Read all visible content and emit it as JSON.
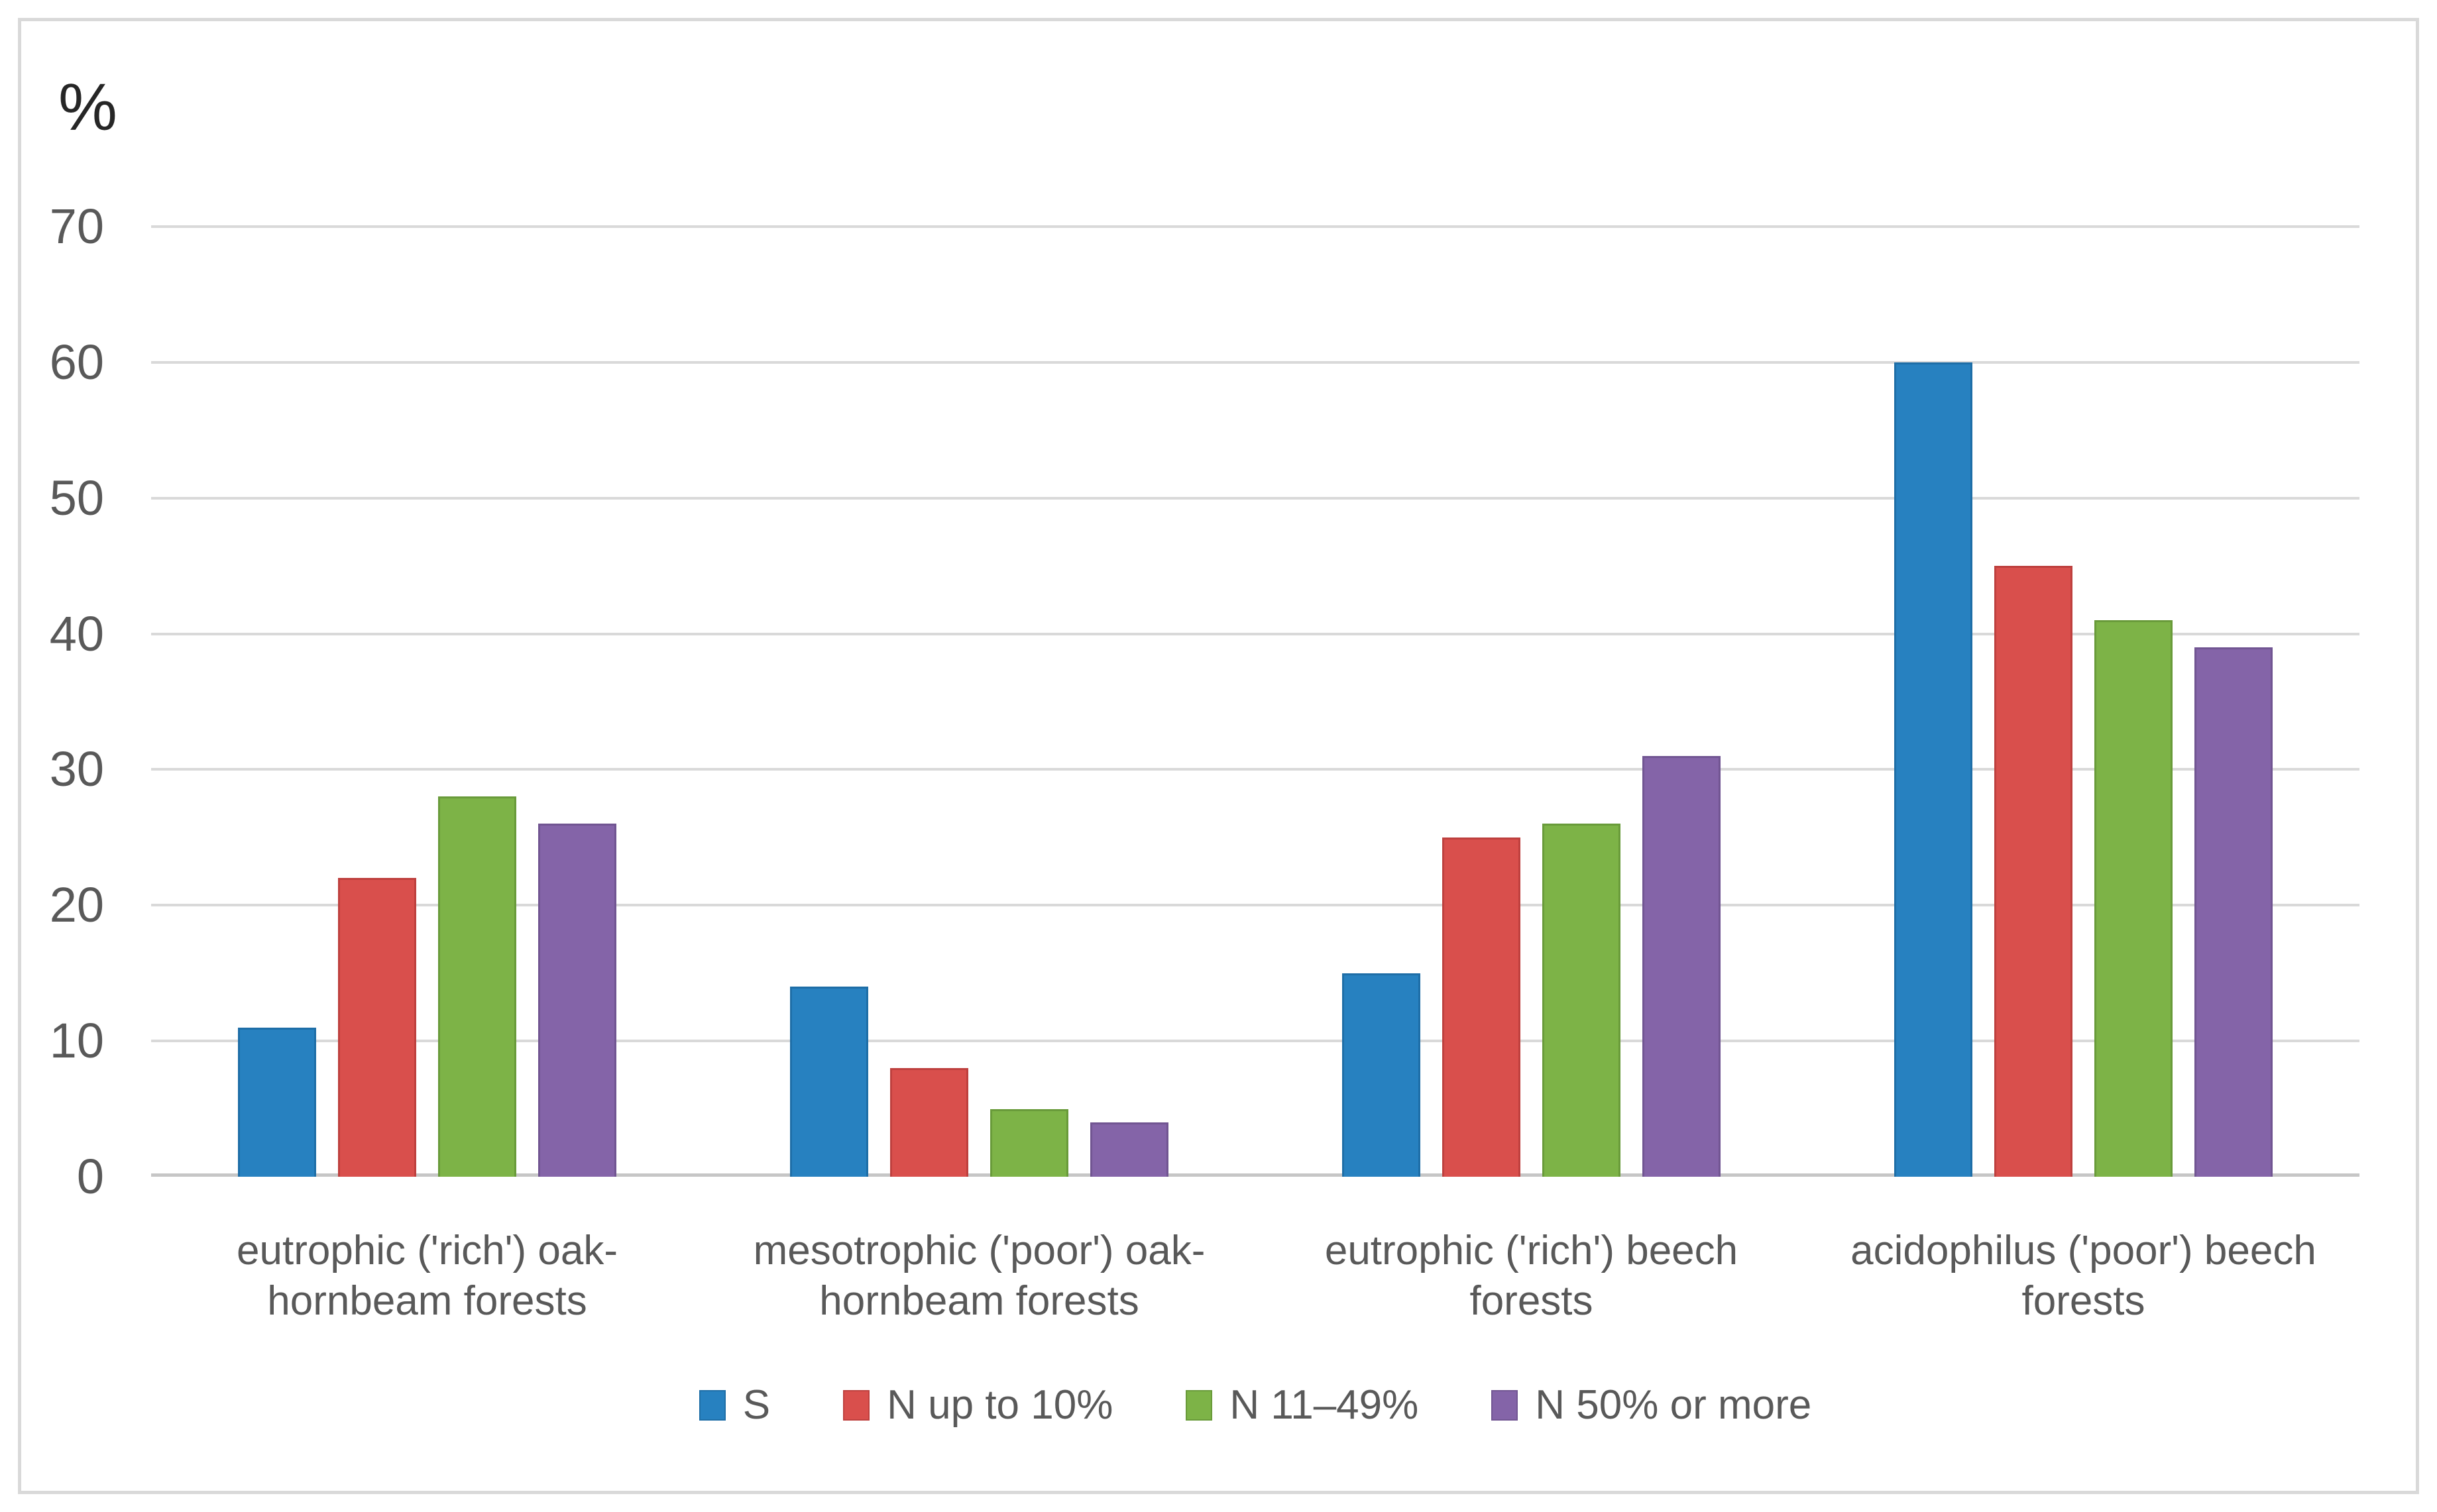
{
  "frame": {
    "border_color": "#D9D9D9",
    "background": "#FFFFFF"
  },
  "chart_data": {
    "type": "bar",
    "title": "",
    "ylabel": "%",
    "xlabel": "",
    "ylim": [
      0,
      70
    ],
    "yticks": [
      0,
      10,
      20,
      30,
      40,
      50,
      60,
      70
    ],
    "grid": true,
    "gridline_color": "#D9D9D9",
    "axis_line_color": "#C6C6C6",
    "tick_label_color": "#595959",
    "category_label_color": "#595959",
    "legend_position": "bottom",
    "categories": [
      {
        "label": "eutrophic ('rich') oak-hornbeam forests",
        "lines": [
          "eutrophic ('rich') oak-",
          "hornbeam forests"
        ]
      },
      {
        "label": "mesotrophic ('poor') oak-hornbeam forests",
        "lines": [
          "mesotrophic ('poor') oak-",
          "hornbeam forests"
        ]
      },
      {
        "label": "eutrophic ('rich') beech forests",
        "lines": [
          "eutrophic ('rich') beech",
          "forests"
        ]
      },
      {
        "label": "acidophilus ('poor') beech forests",
        "lines": [
          "acidophilus ('poor') beech",
          "forests"
        ]
      }
    ],
    "series": [
      {
        "name": "S",
        "color": "#2781C0",
        "edge": "#1E6EA7",
        "values": [
          11,
          14,
          15,
          60
        ]
      },
      {
        "name": "N up to 10%",
        "color": "#D94F4C",
        "edge": "#BE403E",
        "values": [
          22,
          8,
          25,
          45
        ]
      },
      {
        "name": "N 11–49%",
        "color": "#7DB347",
        "edge": "#699B3A",
        "values": [
          28,
          5,
          26,
          41
        ]
      },
      {
        "name": "N 50% or more",
        "color": "#8464A8",
        "edge": "#715592",
        "values": [
          26,
          4,
          31,
          39
        ]
      }
    ]
  }
}
